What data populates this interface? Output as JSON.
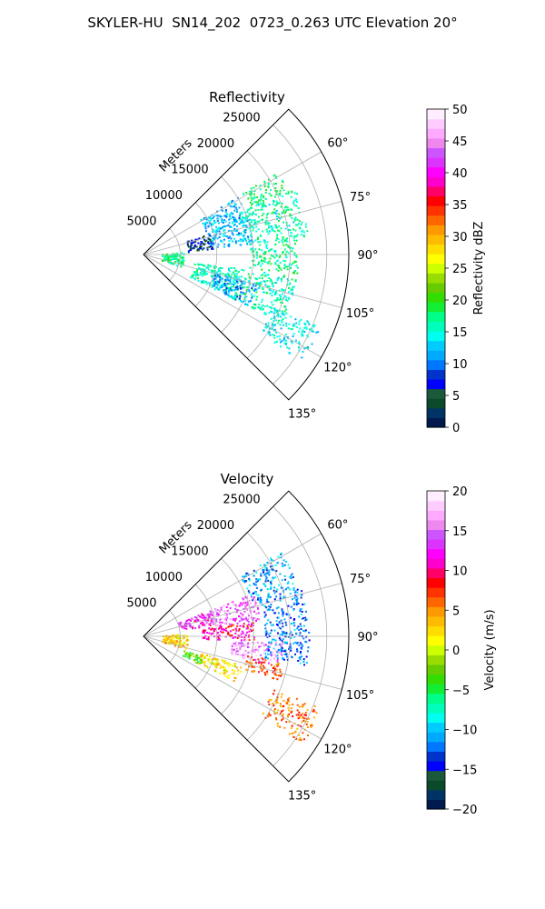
{
  "suptitle": "SKYLER-HU  SN14_202  0723_0.263 UTC Elevation 20°",
  "chart_data": [
    {
      "type": "polar-sector",
      "title": "Reflectivity",
      "radial_label": "Meters",
      "radial_ticks": [
        5000,
        10000,
        15000,
        20000,
        25000
      ],
      "r_max": 28000,
      "theta_range_deg": [
        45,
        135
      ],
      "angle_ticks_deg": [
        60,
        75,
        90,
        105,
        120,
        135
      ],
      "angle_tick_labels": [
        "60°",
        "75°",
        "90°",
        "105°",
        "120°",
        "135°"
      ],
      "grid": true,
      "colorbar": {
        "label": "Reflectivity dBZ",
        "min": 0,
        "max": 50,
        "ticks": [
          0,
          5,
          10,
          15,
          20,
          25,
          30,
          35,
          40,
          45,
          50
        ],
        "tick_labels": [
          "0",
          "5",
          "10",
          "15",
          "20",
          "25",
          "30",
          "35",
          "40",
          "45",
          "50"
        ],
        "colors": [
          "#001a4d",
          "#003366",
          "#0a4a2a",
          "#1a5a3a",
          "#0000ff",
          "#0033cc",
          "#0077ff",
          "#00aaff",
          "#00ccff",
          "#00ffee",
          "#00ffbb",
          "#00ff88",
          "#11ee33",
          "#33dd00",
          "#66cc00",
          "#99dd00",
          "#ccff00",
          "#ffff00",
          "#ffdd00",
          "#ffbb00",
          "#ff9900",
          "#ff6600",
          "#ff3300",
          "#ff0000",
          "#ff0066",
          "#ff00cc",
          "#ff00ff",
          "#dd33ff",
          "#cc55ff",
          "#ee88ee",
          "#ffaaff",
          "#ffccff",
          "#ffeeff"
        ]
      },
      "echo_regions": [
        {
          "theta_range": [
            58,
            66
          ],
          "r_range": [
            15500,
            21500
          ],
          "value": 18
        },
        {
          "theta_range": [
            66,
            84
          ],
          "r_range": [
            14000,
            22500
          ],
          "value": 16
        },
        {
          "theta_range": [
            84,
            97
          ],
          "r_range": [
            14500,
            21000
          ],
          "value": 17
        },
        {
          "theta_range": [
            58,
            84
          ],
          "r_range": [
            9000,
            15000
          ],
          "value": 12
        },
        {
          "theta_range": [
            98,
            116
          ],
          "r_range": [
            7000,
            21000
          ],
          "value": 16
        },
        {
          "theta_range": [
            104,
            116
          ],
          "r_range": [
            10000,
            16000
          ],
          "value": 11
        },
        {
          "theta_range": [
            72,
            86
          ],
          "r_range": [
            6000,
            9500
          ],
          "value": 6
        },
        {
          "theta_range": [
            112,
            124
          ],
          "r_range": [
            19000,
            26000
          ],
          "value": 14
        },
        {
          "theta_range": [
            86,
            108
          ],
          "r_range": [
            2500,
            5500
          ],
          "value": 17
        }
      ]
    },
    {
      "type": "polar-sector",
      "title": "Velocity",
      "radial_label": "Meters",
      "radial_ticks": [
        5000,
        10000,
        15000,
        20000,
        25000
      ],
      "r_max": 28000,
      "theta_range_deg": [
        45,
        135
      ],
      "angle_ticks_deg": [
        60,
        75,
        90,
        105,
        120,
        135
      ],
      "angle_tick_labels": [
        "60°",
        "75°",
        "90°",
        "105°",
        "120°",
        "135°"
      ],
      "grid": true,
      "colorbar": {
        "label": "Velocity (m/s)",
        "min": -20,
        "max": 20,
        "ticks": [
          -20,
          -15,
          -10,
          -5,
          0,
          5,
          10,
          15,
          20
        ],
        "tick_labels": [
          "−20",
          "−15",
          "−10",
          "−5",
          "0",
          "5",
          "10",
          "15",
          "20"
        ],
        "colors": [
          "#001a4d",
          "#003366",
          "#0a4a2a",
          "#1a5a3a",
          "#0000ff",
          "#0033cc",
          "#0077ff",
          "#00aaff",
          "#00ccff",
          "#00ffee",
          "#00ffbb",
          "#00ff88",
          "#11ee33",
          "#33dd00",
          "#66cc00",
          "#99dd00",
          "#ccff00",
          "#ffff00",
          "#ffdd00",
          "#ffbb00",
          "#ff9900",
          "#ff6600",
          "#ff3300",
          "#ff0000",
          "#ff0066",
          "#ff00cc",
          "#ff00ff",
          "#dd33ff",
          "#cc55ff",
          "#ee88ee",
          "#ffaaff",
          "#ffccff",
          "#ffeeff"
        ]
      },
      "echo_regions": [
        {
          "theta_range": [
            58,
            72
          ],
          "r_range": [
            15500,
            22000
          ],
          "value": -11
        },
        {
          "theta_range": [
            72,
            100
          ],
          "r_range": [
            16500,
            22500
          ],
          "value": -12
        },
        {
          "theta_range": [
            68,
            82
          ],
          "r_range": [
            10000,
            16000
          ],
          "value": 15
        },
        {
          "theta_range": [
            82,
            92
          ],
          "r_range": [
            8000,
            15000
          ],
          "value": 10
        },
        {
          "theta_range": [
            92,
            102
          ],
          "r_range": [
            12000,
            19000
          ],
          "value": 16
        },
        {
          "theta_range": [
            100,
            108
          ],
          "r_range": [
            14000,
            19500
          ],
          "value": 7
        },
        {
          "theta_range": [
            106,
            116
          ],
          "r_range": [
            8000,
            14000
          ],
          "value": 2
        },
        {
          "theta_range": [
            108,
            116
          ],
          "r_range": [
            5500,
            8500
          ],
          "value": -3
        },
        {
          "theta_range": [
            68,
            80
          ],
          "r_range": [
            5000,
            10000
          ],
          "value": 13
        },
        {
          "theta_range": [
            112,
            124
          ],
          "r_range": [
            19000,
            26000
          ],
          "value": 6
        },
        {
          "theta_range": [
            86,
            106
          ],
          "r_range": [
            2500,
            6000
          ],
          "value": 3
        }
      ]
    }
  ]
}
